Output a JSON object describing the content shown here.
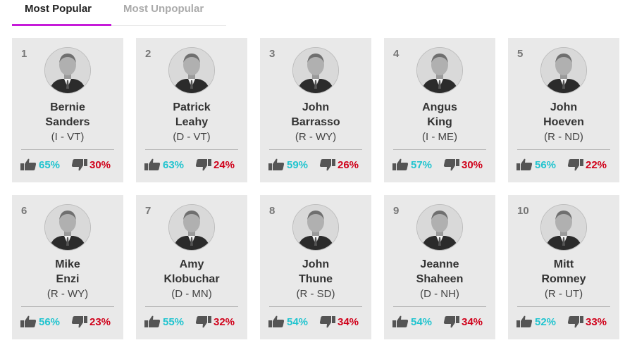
{
  "tabs": [
    {
      "label": "Most Popular",
      "active": true
    },
    {
      "label": "Most Unpopular",
      "active": false
    }
  ],
  "colors": {
    "accent": "#c61ad9",
    "approve": "#21c4cf",
    "disapprove": "#d0021b",
    "card_bg": "#e9e9e9"
  },
  "icons": {
    "approve": "thumbs-up-icon",
    "disapprove": "thumbs-down-icon"
  },
  "senators": [
    {
      "rank": "1",
      "first": "Bernie",
      "last": "Sanders",
      "party": "(I - VT)",
      "approve": "65%",
      "disapprove": "30%"
    },
    {
      "rank": "2",
      "first": "Patrick",
      "last": "Leahy",
      "party": "(D - VT)",
      "approve": "63%",
      "disapprove": "24%"
    },
    {
      "rank": "3",
      "first": "John",
      "last": "Barrasso",
      "party": "(R - WY)",
      "approve": "59%",
      "disapprove": "26%"
    },
    {
      "rank": "4",
      "first": "Angus",
      "last": "King",
      "party": "(I - ME)",
      "approve": "57%",
      "disapprove": "30%"
    },
    {
      "rank": "5",
      "first": "John",
      "last": "Hoeven",
      "party": "(R - ND)",
      "approve": "56%",
      "disapprove": "22%"
    },
    {
      "rank": "6",
      "first": "Mike",
      "last": "Enzi",
      "party": "(R - WY)",
      "approve": "56%",
      "disapprove": "23%"
    },
    {
      "rank": "7",
      "first": "Amy",
      "last": "Klobuchar",
      "party": "(D - MN)",
      "approve": "55%",
      "disapprove": "32%"
    },
    {
      "rank": "8",
      "first": "John",
      "last": "Thune",
      "party": "(R - SD)",
      "approve": "54%",
      "disapprove": "34%"
    },
    {
      "rank": "9",
      "first": "Jeanne",
      "last": "Shaheen",
      "party": "(D - NH)",
      "approve": "54%",
      "disapprove": "34%"
    },
    {
      "rank": "10",
      "first": "Mitt",
      "last": "Romney",
      "party": "(R - UT)",
      "approve": "52%",
      "disapprove": "33%"
    }
  ]
}
